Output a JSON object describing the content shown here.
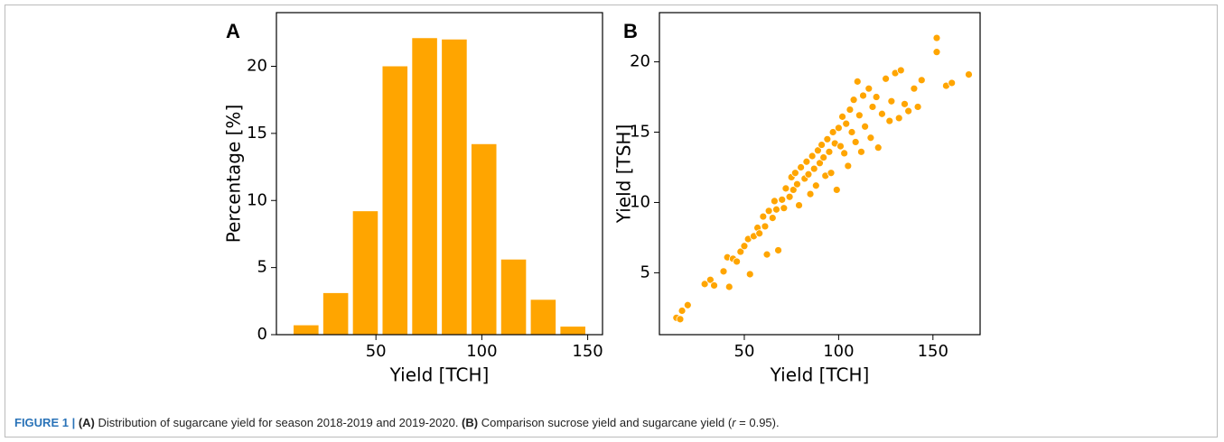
{
  "chart_data": [
    {
      "type": "histogram",
      "panel": "A",
      "xlabel": "Yield [TCH]",
      "ylabel": "Percentage [%]",
      "color": "#ffa500",
      "bins": [
        10,
        24,
        38,
        52,
        66,
        80,
        94,
        108,
        122,
        136,
        150
      ],
      "values": [
        0.7,
        3.1,
        9.2,
        20.0,
        22.1,
        22.0,
        14.2,
        5.6,
        2.6,
        0.6
      ],
      "xlim": [
        3,
        157
      ],
      "xticks": [
        50,
        100,
        150
      ],
      "ylim": [
        0,
        24
      ],
      "yticks": [
        0,
        5,
        10,
        15,
        20
      ]
    },
    {
      "type": "scatter",
      "panel": "B",
      "xlabel": "Yield [TCH]",
      "ylabel": "Yield [TSH]",
      "color": "#ffa500",
      "x": [
        14,
        16,
        17,
        20,
        29,
        32,
        34,
        39,
        41,
        42,
        44,
        46,
        48,
        50,
        52,
        53,
        55,
        57,
        58,
        60,
        61,
        62,
        63,
        65,
        66,
        67,
        68,
        70,
        71,
        72,
        74,
        75,
        76,
        77,
        78,
        79,
        80,
        82,
        83,
        84,
        85,
        86,
        87,
        88,
        89,
        90,
        91,
        92,
        93,
        94,
        95,
        96,
        97,
        98,
        99,
        100,
        101,
        102,
        103,
        104,
        105,
        106,
        107,
        108,
        109,
        110,
        111,
        112,
        113,
        114,
        116,
        117,
        118,
        120,
        121,
        123,
        125,
        127,
        128,
        130,
        132,
        133,
        135,
        137,
        140,
        142,
        144,
        152,
        152,
        157,
        160,
        169
      ],
      "values": [
        1.8,
        1.7,
        2.3,
        2.7,
        4.2,
        4.5,
        4.1,
        5.1,
        6.1,
        4.0,
        6.0,
        5.8,
        6.5,
        6.9,
        7.4,
        4.9,
        7.6,
        8.2,
        7.8,
        9.0,
        8.3,
        6.3,
        9.4,
        8.9,
        10.1,
        9.5,
        6.6,
        10.2,
        9.6,
        11.0,
        10.4,
        11.8,
        10.9,
        12.1,
        11.3,
        9.8,
        12.5,
        11.7,
        12.9,
        12.0,
        10.6,
        13.3,
        12.4,
        11.2,
        13.7,
        12.8,
        14.1,
        13.2,
        11.9,
        14.5,
        13.6,
        12.1,
        15.0,
        14.2,
        10.9,
        15.3,
        14.0,
        16.1,
        13.5,
        15.6,
        12.6,
        16.6,
        15.0,
        17.3,
        14.3,
        18.6,
        16.2,
        13.6,
        17.6,
        15.4,
        18.1,
        14.6,
        16.8,
        17.5,
        13.9,
        16.3,
        18.8,
        15.8,
        17.2,
        19.2,
        16.0,
        19.4,
        17.0,
        16.5,
        18.1,
        16.8,
        18.7,
        21.7,
        20.7,
        18.3,
        18.5,
        19.1
      ],
      "xlim": [
        5,
        175
      ],
      "xticks": [
        50,
        100,
        150
      ],
      "ylim": [
        0.6,
        23.5
      ],
      "yticks": [
        5,
        10,
        15,
        20
      ]
    }
  ],
  "caption": [
    {
      "text": "FIGURE 1 | ",
      "bold": true
    },
    {
      "text": "(A)",
      "bold": true
    },
    {
      "text": " Distribution of sugarcane yield for season 2018-2019 and 2019-2020. ",
      "bold": false
    },
    {
      "text": "(B)",
      "bold": true
    },
    {
      "text": " Comparison sucrose yield and sugarcane yield (",
      "bold": false
    },
    {
      "text": "r",
      "bold": false,
      "italic": true
    },
    {
      "text": " = 0.95).",
      "bold": false
    }
  ]
}
